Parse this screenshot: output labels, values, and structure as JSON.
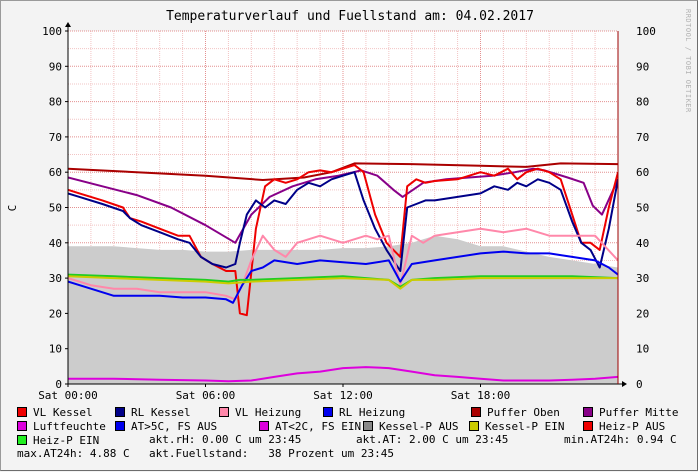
{
  "title": "Temperaturverlauf und Fuellstand am: 04.02.2017",
  "watermark": "RRDTOOL / TOBI OETIKER",
  "ylabel": "C",
  "chart_data": {
    "type": "line",
    "title": "Temperaturverlauf und Fuellstand am: 04.02.2017",
    "ylabel": "C",
    "ylim": [
      0,
      100
    ],
    "xlim": [
      0,
      24
    ],
    "x_unit": "hours",
    "grid": true,
    "yticks": [
      0,
      10,
      20,
      30,
      40,
      50,
      60,
      70,
      80,
      90,
      100
    ],
    "xticks": [
      {
        "x": 0,
        "label": "Sat 00:00"
      },
      {
        "x": 6,
        "label": "Sat 06:00"
      },
      {
        "x": 12,
        "label": "Sat 12:00"
      },
      {
        "x": 18,
        "label": "Sat 18:00"
      }
    ],
    "series": [
      {
        "name": "Luftfeuchte",
        "color": "#cccccc",
        "style": "area",
        "x": [
          0,
          1,
          2,
          3,
          4,
          5,
          6,
          7,
          8,
          9,
          10,
          11,
          12,
          13,
          14,
          15,
          16,
          17,
          18,
          19,
          20,
          21,
          22,
          23,
          24
        ],
        "y": [
          39,
          39,
          39,
          38.5,
          38,
          38,
          37.5,
          37.5,
          38,
          38,
          38,
          38,
          38.5,
          38.5,
          39,
          40,
          42,
          41,
          39,
          39,
          37.5,
          36,
          35,
          34,
          33
        ]
      },
      {
        "name": "Puffer Oben",
        "color": "#aa0000",
        "x": [
          0,
          3,
          6,
          8.5,
          10.3,
          11.5,
          12.5,
          15,
          18,
          20,
          21.5,
          24
        ],
        "y": [
          61,
          60,
          59,
          57.8,
          58.5,
          60,
          62.5,
          62.3,
          61.8,
          61.5,
          62.5,
          62.3
        ]
      },
      {
        "name": "Puffer Mitte",
        "color": "#880088",
        "x": [
          0,
          1.5,
          3,
          4.5,
          6,
          7.3,
          8,
          8.8,
          9.8,
          10.8,
          11.8,
          12.8,
          13.5,
          14.2,
          14.6,
          15.5,
          16.5,
          17.5,
          18.5,
          19.5,
          20.3,
          20.8,
          21.8,
          22.5,
          22.9,
          23.3,
          24
        ],
        "y": [
          58.5,
          56,
          53.5,
          50,
          45,
          40,
          48,
          53,
          56,
          58,
          59,
          60.5,
          59,
          55,
          53,
          57,
          58,
          58.5,
          59,
          60,
          61,
          60.5,
          58.5,
          57,
          50.5,
          48,
          58
        ]
      },
      {
        "name": "VL Kessel",
        "color": "#ee0000",
        "x": [
          0,
          0.5,
          1.5,
          2.4,
          2.7,
          3.2,
          4,
          4.8,
          5.3,
          5.8,
          6.3,
          6.9,
          7.3,
          7.5,
          7.8,
          8.2,
          8.6,
          9,
          9.5,
          10,
          10.5,
          11,
          11.5,
          12,
          12.5,
          12.9,
          13.4,
          13.9,
          14.2,
          14.5,
          14.8,
          15.2,
          15.6,
          16,
          17,
          18,
          18.6,
          19.2,
          19.6,
          20,
          20.5,
          21,
          21.5,
          22,
          22.4,
          22.8,
          23.2,
          23.6,
          24
        ],
        "y": [
          55,
          54,
          52,
          50,
          47,
          46,
          44,
          42,
          42,
          36,
          34,
          32,
          32,
          20,
          19.5,
          44,
          56,
          58,
          57,
          58,
          60,
          60.5,
          60,
          61,
          62,
          60,
          48,
          40,
          38,
          36,
          56,
          58,
          57,
          57.5,
          58,
          60,
          59,
          61,
          58,
          60,
          61,
          60,
          58,
          48,
          40,
          40,
          38,
          50,
          60
        ]
      },
      {
        "name": "RL Kessel",
        "color": "#000088",
        "x": [
          0,
          0.5,
          1.5,
          2.4,
          2.7,
          3.2,
          4,
          4.8,
          5.3,
          5.8,
          6.3,
          6.9,
          7.3,
          7.5,
          7.8,
          8.2,
          8.6,
          9,
          9.5,
          10,
          10.5,
          11,
          11.5,
          12,
          12.5,
          12.9,
          13.4,
          13.9,
          14.2,
          14.5,
          14.8,
          15.2,
          15.6,
          16,
          17,
          18,
          18.6,
          19.2,
          19.6,
          20,
          20.5,
          21,
          21.5,
          22,
          22.4,
          22.8,
          23.2,
          23.6,
          24
        ],
        "y": [
          54,
          53,
          51,
          49,
          47,
          45,
          43,
          41,
          40,
          36,
          34,
          33,
          34,
          40,
          48,
          52,
          50,
          52,
          51,
          55,
          57,
          56,
          58,
          59,
          60,
          52,
          44,
          38,
          35,
          32,
          50,
          51,
          52,
          52,
          53,
          54,
          56,
          55,
          57,
          56,
          58,
          57,
          55,
          46,
          40,
          38,
          33,
          44,
          58
        ]
      },
      {
        "name": "VL Heizung",
        "color": "#ff88aa",
        "x": [
          0,
          1,
          2,
          3,
          4,
          5,
          6,
          6.9,
          7.3,
          7.6,
          8,
          8.5,
          9,
          9.5,
          10,
          11,
          12,
          13,
          13.5,
          14,
          14.5,
          15,
          15.5,
          16,
          17,
          18,
          19,
          20,
          21,
          22,
          23,
          24
        ],
        "y": [
          30,
          28,
          27,
          27,
          26,
          26,
          26,
          25,
          24,
          28,
          35,
          42,
          38,
          36,
          40,
          42,
          40,
          42,
          41,
          42,
          28,
          42,
          40,
          42,
          43,
          44,
          43,
          44,
          42,
          42,
          42,
          35
        ]
      },
      {
        "name": "RL Heizung",
        "color": "#0000ee",
        "x": [
          0,
          1,
          2,
          3,
          4,
          5,
          6,
          6.9,
          7.2,
          7.6,
          8,
          8.5,
          9,
          10,
          11,
          12,
          13,
          14,
          14.5,
          15,
          16,
          17,
          18,
          19,
          20,
          21,
          22,
          23,
          23.6,
          24
        ],
        "y": [
          29,
          27,
          25,
          25,
          25,
          24.5,
          24.5,
          24,
          23,
          28,
          32,
          33,
          35,
          34,
          35,
          34.5,
          34,
          35,
          29,
          34,
          35,
          36,
          37,
          37.5,
          37,
          37,
          36,
          35,
          33,
          31
        ]
      },
      {
        "name": "Heiz-P EIN",
        "color": "#22cc22",
        "x": [
          0,
          2,
          4,
          6,
          7,
          7.5,
          8,
          10,
          12,
          13,
          14,
          14.5,
          15,
          16,
          18,
          20,
          22,
          24
        ],
        "y": [
          31,
          30.5,
          30,
          29.5,
          29,
          29.5,
          29.5,
          30,
          30.5,
          30,
          29.5,
          27.5,
          29.5,
          30,
          30.5,
          30.5,
          30.5,
          30
        ]
      },
      {
        "name": "Kessel-P EIN",
        "color": "#cccc00",
        "x": [
          0,
          2,
          4,
          6,
          7,
          8,
          10,
          12,
          14,
          14.5,
          15,
          16,
          18,
          20,
          22,
          24
        ],
        "y": [
          30.5,
          30,
          29.5,
          29,
          28.5,
          29,
          29.5,
          30,
          29.5,
          27,
          29.5,
          29.5,
          30,
          30,
          30,
          30
        ]
      },
      {
        "name": "AT<2C, FS EIN",
        "color": "#dd00dd",
        "x": [
          0,
          2,
          4,
          6,
          7,
          8,
          9,
          10,
          11,
          12,
          13,
          14,
          15,
          16,
          17,
          18,
          19,
          20,
          21,
          22,
          23,
          24
        ],
        "y": [
          1.5,
          1.5,
          1.2,
          1,
          0.8,
          1,
          2,
          3,
          3.5,
          4.5,
          4.8,
          4.5,
          3.5,
          2.5,
          2,
          1.5,
          1,
          1,
          1,
          1.2,
          1.5,
          2
        ]
      }
    ],
    "legend": [
      {
        "label": "VL Kessel",
        "color": "#ee0000"
      },
      {
        "label": "RL Kessel",
        "color": "#000088"
      },
      {
        "label": "VL Heizung",
        "color": "#ff88aa"
      },
      {
        "label": "RL Heizung",
        "color": "#0000ee"
      },
      {
        "label": "Puffer Oben",
        "color": "#aa0000"
      },
      {
        "label": "Puffer Mitte",
        "color": "#880088"
      },
      {
        "label": "Luftfeuchte",
        "color": "#dd00dd"
      },
      {
        "label": "AT>5C, FS AUS",
        "color": "#0000ee"
      },
      {
        "label": "AT<2C, FS EIN",
        "color": "#dd00dd"
      },
      {
        "label": "Kessel-P AUS",
        "color": "#888888"
      },
      {
        "label": "Kessel-P EIN",
        "color": "#cccc00"
      },
      {
        "label": "Heiz-P AUS",
        "color": "#ee0000"
      },
      {
        "label": "Heiz-P EIN",
        "color": "#22ee22"
      }
    ],
    "legend_position": "bottom"
  },
  "stats": {
    "rh": "akt.rH: 0.00 C um 23:45",
    "at": "akt.AT: 2.00 C um 23:45",
    "min_at": "min.AT24h: 0.94 C",
    "max_at": "max.AT24h: 4.88 C",
    "fuellstand": "akt.Fuellstand:   38 Prozent um 23:45"
  }
}
